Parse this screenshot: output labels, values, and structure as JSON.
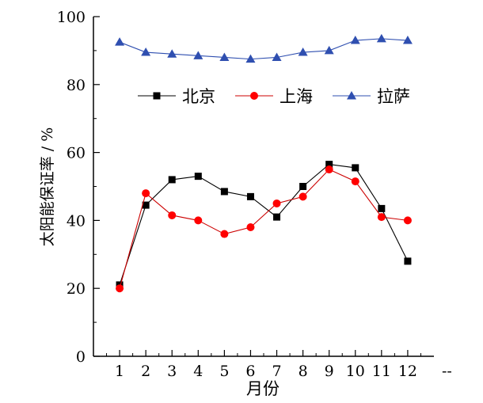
{
  "chart_data": {
    "type": "line",
    "title": "",
    "xlabel": "月份",
    "ylabel": "太阳能保证率 / %",
    "x": [
      1,
      2,
      3,
      4,
      5,
      6,
      7,
      8,
      9,
      10,
      11,
      12
    ],
    "x_tick_labels": [
      "1",
      "2",
      "3",
      "4",
      "5",
      "6",
      "7",
      "8",
      "9",
      "10",
      "11",
      "12"
    ],
    "x_axis_trailing_mark": "--",
    "y_ticks": [
      0,
      20,
      40,
      60,
      80,
      100
    ],
    "y_tick_labels": [
      "0",
      "20",
      "40",
      "60",
      "80",
      "100"
    ],
    "xlim": [
      0,
      13
    ],
    "ylim": [
      0,
      100
    ],
    "grid": false,
    "legend_position": "upper-center",
    "series": [
      {
        "name": "北京",
        "marker": "square",
        "color": "#000000",
        "values": [
          21,
          44.5,
          52,
          53,
          48.5,
          47,
          41,
          50,
          56.5,
          55.5,
          43.5,
          28
        ]
      },
      {
        "name": "上海",
        "marker": "circle",
        "color": "#ff0000",
        "line_color": "#cc0000",
        "values": [
          20,
          48,
          41.5,
          40,
          36,
          38,
          45,
          47,
          55,
          51.5,
          41,
          40
        ]
      },
      {
        "name": "拉萨",
        "marker": "triangle",
        "color": "#2f4fb0",
        "line_color": "#2f4fb0",
        "values": [
          92.5,
          89.5,
          89,
          88.5,
          88,
          87.5,
          88,
          89.5,
          90,
          93,
          93.5,
          93
        ]
      }
    ]
  }
}
